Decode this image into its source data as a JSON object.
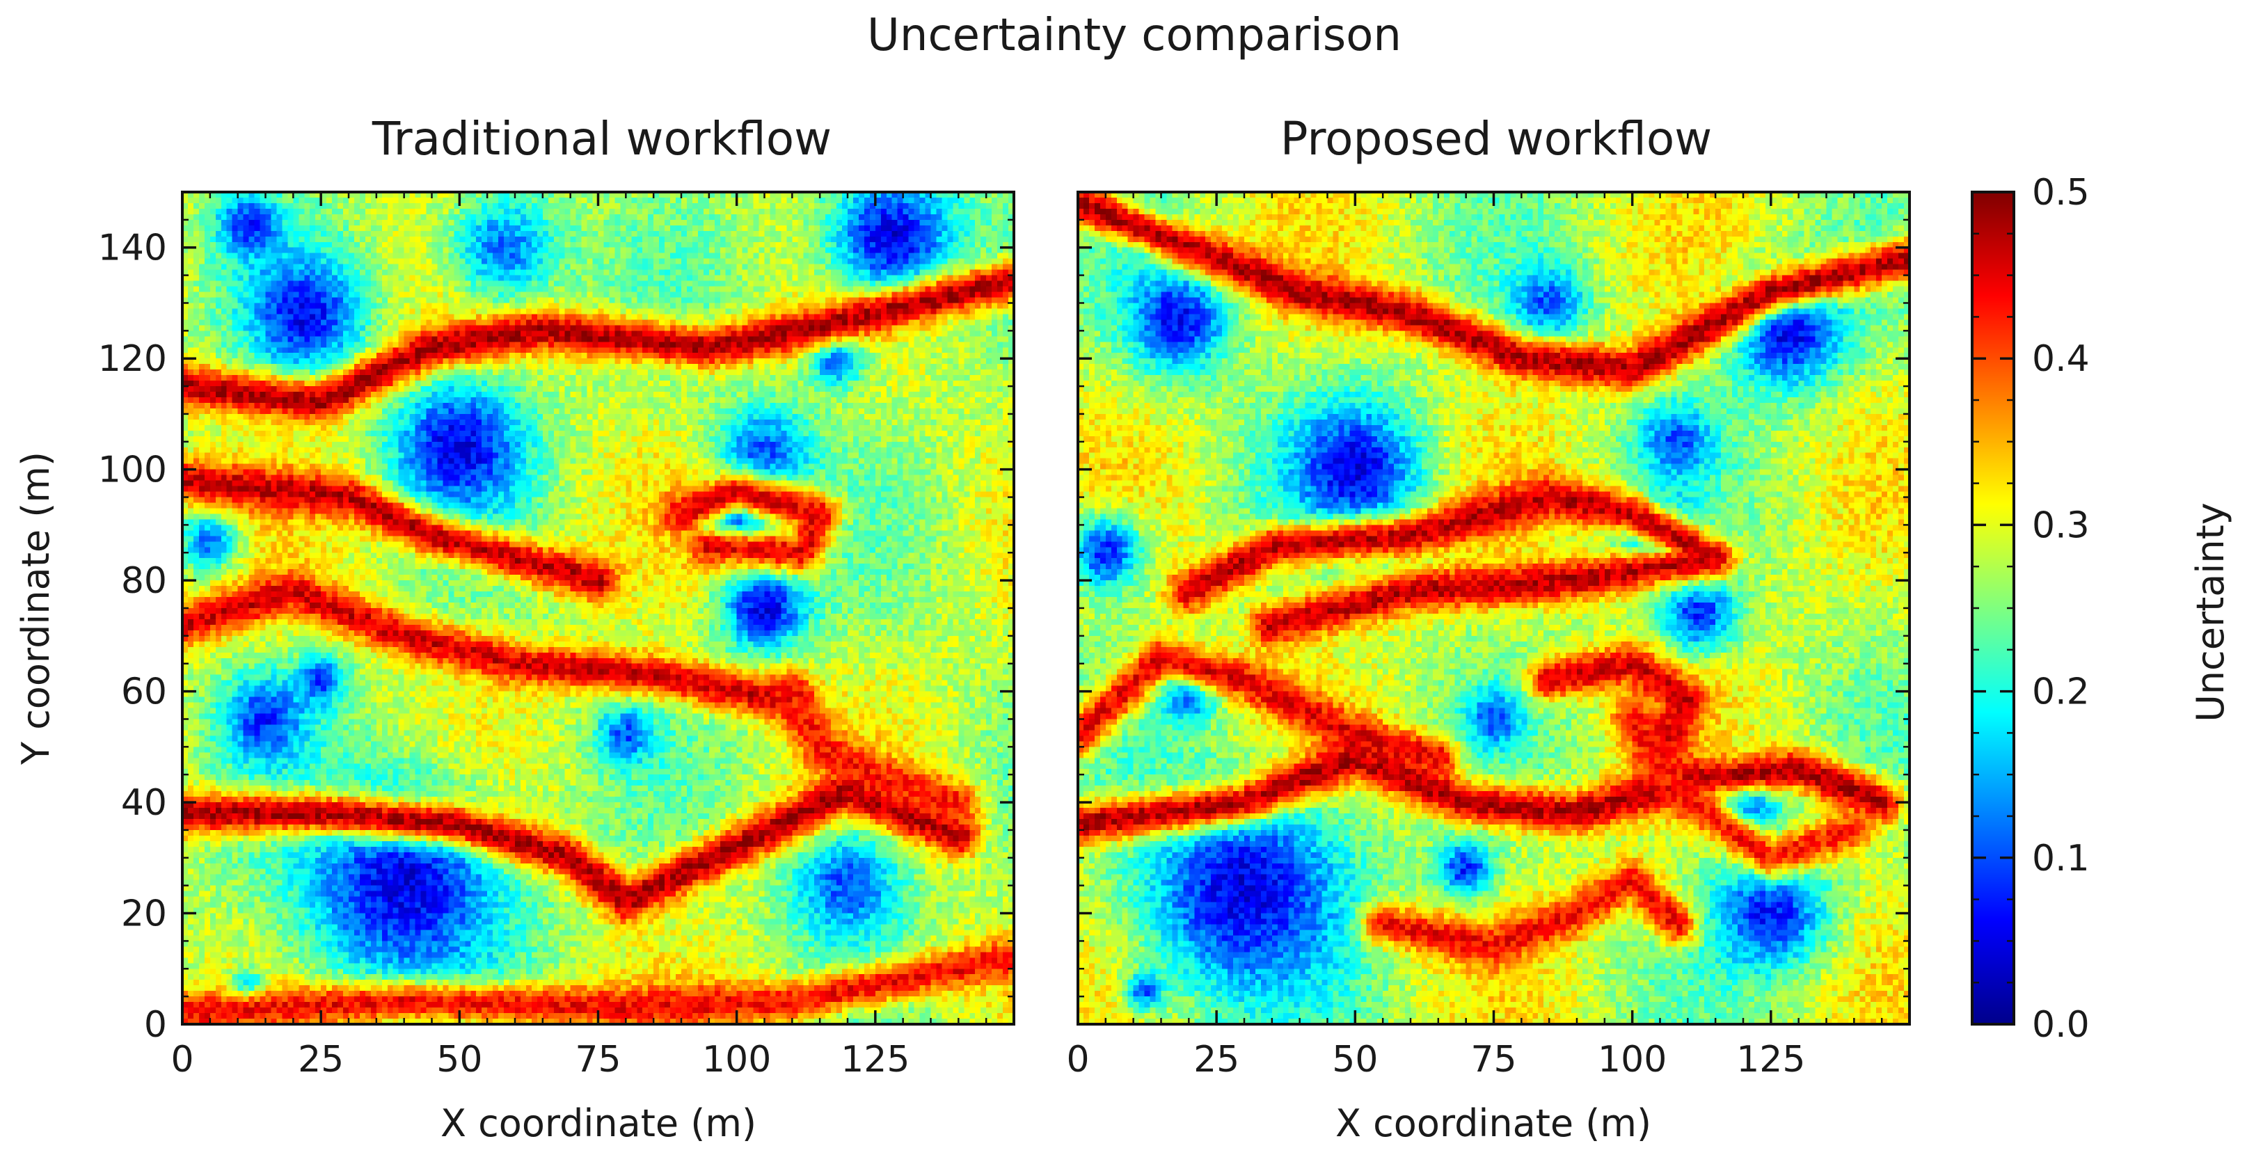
{
  "figure_title": "Uncertainty comparison",
  "colorbar": {
    "label": "Uncertainty",
    "range": [
      0.0,
      0.5
    ],
    "ticks": [
      "0.0",
      "0.1",
      "0.2",
      "0.3",
      "0.4",
      "0.5"
    ],
    "colormap": "jet"
  },
  "chart_data": [
    {
      "type": "heatmap",
      "title": "Traditional workflow",
      "xlabel": "X coordinate (m)",
      "ylabel": "Y coordinate (m)",
      "xlim": [
        0,
        150
      ],
      "ylim": [
        0,
        150
      ],
      "xticks": [
        0,
        25,
        50,
        75,
        100,
        125
      ],
      "yticks": [
        0,
        20,
        40,
        60,
        80,
        100,
        120,
        140
      ],
      "value_range": [
        0.0,
        0.5
      ],
      "grid": false,
      "low_uncertainty_zones": [
        {
          "x": 12,
          "y": 144,
          "r": 7,
          "value": 0.08
        },
        {
          "x": 22,
          "y": 128,
          "r": 12,
          "value": 0.06
        },
        {
          "x": 58,
          "y": 140,
          "r": 12,
          "value": 0.12
        },
        {
          "x": 128,
          "y": 142,
          "r": 14,
          "value": 0.05
        },
        {
          "x": 118,
          "y": 120,
          "r": 6,
          "value": 0.1
        },
        {
          "x": 50,
          "y": 104,
          "r": 14,
          "value": 0.05
        },
        {
          "x": 105,
          "y": 103,
          "r": 10,
          "value": 0.1
        },
        {
          "x": 100,
          "y": 90,
          "r": 7,
          "value": 0.05
        },
        {
          "x": 105,
          "y": 75,
          "r": 9,
          "value": 0.05
        },
        {
          "x": 5,
          "y": 87,
          "r": 6,
          "value": 0.12
        },
        {
          "x": 15,
          "y": 55,
          "r": 9,
          "value": 0.08
        },
        {
          "x": 40,
          "y": 25,
          "r": 22,
          "value": 0.05
        },
        {
          "x": 120,
          "y": 25,
          "r": 12,
          "value": 0.1
        },
        {
          "x": 80,
          "y": 52,
          "r": 6,
          "value": 0.1
        },
        {
          "x": 25,
          "y": 62,
          "r": 5,
          "value": 0.08
        },
        {
          "x": 12,
          "y": 6,
          "r": 4,
          "value": 0.1
        }
      ],
      "high_uncertainty_ridges": [
        {
          "points": [
            [
              0,
              115
            ],
            [
              25,
              112
            ],
            [
              45,
              122
            ],
            [
              65,
              125
            ],
            [
              95,
              122
            ],
            [
              112,
              125
            ],
            [
              150,
              134
            ]
          ],
          "value": 0.48
        },
        {
          "points": [
            [
              0,
              98
            ],
            [
              30,
              95
            ],
            [
              45,
              88
            ],
            [
              60,
              84
            ],
            [
              75,
              80
            ]
          ],
          "value": 0.47
        },
        {
          "points": [
            [
              0,
              72
            ],
            [
              20,
              78
            ],
            [
              40,
              70
            ],
            [
              60,
              65
            ],
            [
              85,
              63
            ],
            [
              110,
              58
            ]
          ],
          "value": 0.46
        },
        {
          "points": [
            [
              0,
              38
            ],
            [
              25,
              38
            ],
            [
              50,
              36
            ],
            [
              70,
              30
            ],
            [
              80,
              22
            ],
            [
              100,
              32
            ],
            [
              120,
              42
            ],
            [
              140,
              34
            ]
          ],
          "value": 0.48
        },
        {
          "points": [
            [
              90,
              92
            ],
            [
              100,
              96
            ],
            [
              115,
              92
            ],
            [
              112,
              85
            ],
            [
              95,
              86
            ]
          ],
          "value": 0.45
        },
        {
          "points": [
            [
              0,
              2
            ],
            [
              40,
              4
            ],
            [
              80,
              3
            ],
            [
              110,
              4
            ],
            [
              150,
              12
            ]
          ],
          "value": 0.44
        },
        {
          "points": [
            [
              110,
              60
            ],
            [
              115,
              50
            ],
            [
              125,
              45
            ],
            [
              140,
              40
            ]
          ],
          "value": 0.43
        }
      ]
    },
    {
      "type": "heatmap",
      "title": "Proposed workflow",
      "xlabel": "X coordinate (m)",
      "ylabel": "",
      "xlim": [
        0,
        150
      ],
      "ylim": [
        0,
        150
      ],
      "xticks": [
        0,
        25,
        50,
        75,
        100,
        125
      ],
      "yticks": [
        0,
        20,
        40,
        60,
        80,
        100,
        120,
        140
      ],
      "value_range": [
        0.0,
        0.5
      ],
      "grid": false,
      "low_uncertainty_zones": [
        {
          "x": 12,
          "y": 143,
          "r": 6,
          "value": 0.1
        },
        {
          "x": 18,
          "y": 127,
          "r": 11,
          "value": 0.06
        },
        {
          "x": 128,
          "y": 125,
          "r": 12,
          "value": 0.05
        },
        {
          "x": 85,
          "y": 130,
          "r": 8,
          "value": 0.1
        },
        {
          "x": 50,
          "y": 100,
          "r": 14,
          "value": 0.05
        },
        {
          "x": 108,
          "y": 105,
          "r": 8,
          "value": 0.1
        },
        {
          "x": 105,
          "y": 88,
          "r": 8,
          "value": 0.08
        },
        {
          "x": 112,
          "y": 74,
          "r": 8,
          "value": 0.08
        },
        {
          "x": 5,
          "y": 85,
          "r": 8,
          "value": 0.08
        },
        {
          "x": 20,
          "y": 60,
          "r": 6,
          "value": 0.08
        },
        {
          "x": 30,
          "y": 24,
          "r": 22,
          "value": 0.05
        },
        {
          "x": 125,
          "y": 20,
          "r": 12,
          "value": 0.07
        },
        {
          "x": 120,
          "y": 40,
          "r": 8,
          "value": 0.06
        },
        {
          "x": 70,
          "y": 28,
          "r": 6,
          "value": 0.08
        },
        {
          "x": 75,
          "y": 55,
          "r": 6,
          "value": 0.1
        },
        {
          "x": 12,
          "y": 6,
          "r": 4,
          "value": 0.1
        }
      ],
      "high_uncertainty_ridges": [
        {
          "points": [
            [
              0,
              148
            ],
            [
              20,
              140
            ],
            [
              40,
              132
            ],
            [
              60,
              128
            ],
            [
              80,
              120
            ],
            [
              100,
              118
            ],
            [
              125,
              132
            ],
            [
              150,
              138
            ]
          ],
          "value": 0.48
        },
        {
          "points": [
            [
              20,
              78
            ],
            [
              35,
              86
            ],
            [
              60,
              88
            ],
            [
              85,
              95
            ],
            [
              100,
              92
            ],
            [
              115,
              84
            ],
            [
              90,
              80
            ],
            [
              60,
              78
            ],
            [
              35,
              72
            ]
          ],
          "value": 0.47
        },
        {
          "points": [
            [
              0,
              36
            ],
            [
              30,
              40
            ],
            [
              50,
              48
            ],
            [
              70,
              40
            ],
            [
              90,
              38
            ],
            [
              110,
              44
            ],
            [
              130,
              46
            ],
            [
              145,
              40
            ]
          ],
          "value": 0.48
        },
        {
          "points": [
            [
              0,
              52
            ],
            [
              15,
              66
            ],
            [
              30,
              62
            ],
            [
              50,
              52
            ],
            [
              65,
              48
            ]
          ],
          "value": 0.45
        },
        {
          "points": [
            [
              85,
              62
            ],
            [
              100,
              65
            ],
            [
              110,
              58
            ],
            [
              105,
              50
            ]
          ],
          "value": 0.46
        },
        {
          "points": [
            [
              55,
              18
            ],
            [
              75,
              14
            ],
            [
              90,
              20
            ],
            [
              100,
              26
            ],
            [
              108,
              18
            ]
          ],
          "value": 0.44
        },
        {
          "points": [
            [
              100,
              55
            ],
            [
              110,
              40
            ],
            [
              125,
              30
            ],
            [
              140,
              35
            ]
          ],
          "value": 0.43
        }
      ]
    }
  ]
}
